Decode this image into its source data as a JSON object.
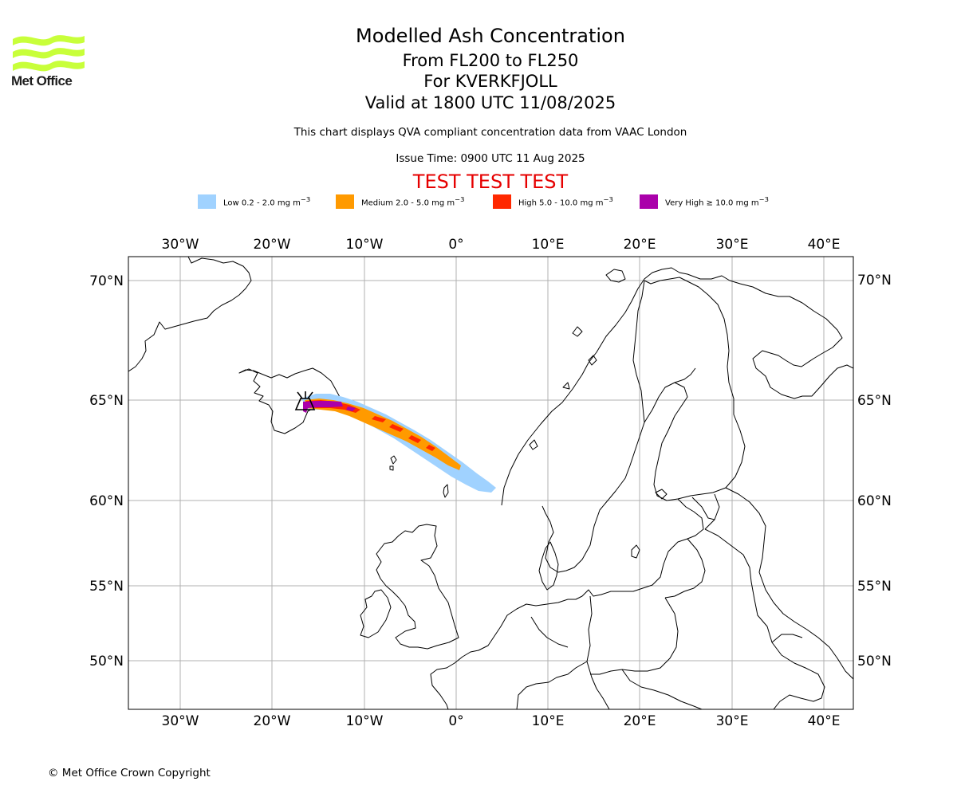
{
  "logo": {
    "text": "Met Office"
  },
  "header": {
    "title": "Modelled Ash Concentration",
    "levels": "From FL200 to FL250",
    "volcano": "For KVERKFJOLL",
    "valid": "Valid at 1800 UTC 11/08/2025",
    "note": "This chart displays QVA compliant concentration data from VAAC London",
    "issue": "Issue Time: 0900 UTC 11 Aug 2025",
    "test_banner": "TEST TEST TEST"
  },
  "legend": [
    {
      "label": "Low 0.2 - 2.0 mg m",
      "color": "#a0d2ff"
    },
    {
      "label": "Medium 2.0 - 5.0 mg m",
      "color": "#ff9a00"
    },
    {
      "label": "High 5.0 - 10.0 mg m",
      "color": "#ff2800"
    },
    {
      "label": "Very High ≥ 10.0 mg m",
      "color": "#aa00aa"
    }
  ],
  "legend_unit_exponent": "−3",
  "map": {
    "projection": "lon-lat",
    "lon_range": [
      "35.5°W",
      "43°E"
    ],
    "lat_range": [
      "47.5°N",
      "71°N"
    ],
    "lon_ticks": [
      "30°W",
      "20°W",
      "10°W",
      "0°",
      "10°E",
      "20°E",
      "30°E",
      "40°E"
    ],
    "lat_ticks": [
      "70°N",
      "65°N",
      "60°N",
      "55°N",
      "50°N"
    ],
    "gridlines": true,
    "source_marker": "volcano-symbol-kverkfjoll"
  },
  "footer": {
    "copyright": "© Met Office Crown Copyright"
  }
}
